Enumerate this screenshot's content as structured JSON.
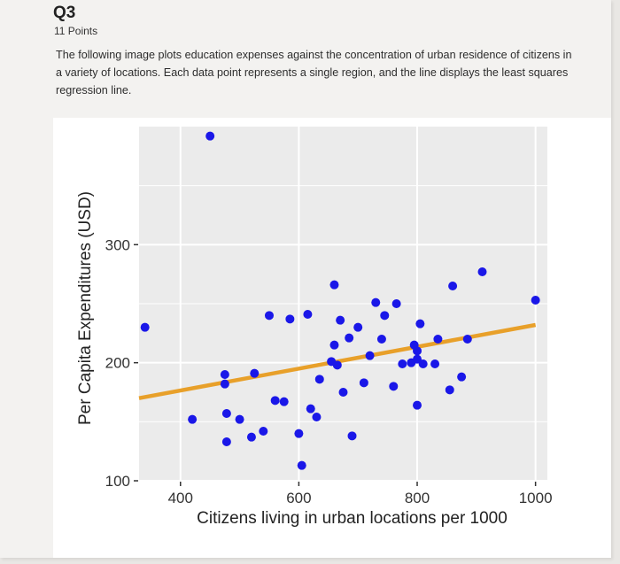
{
  "question": {
    "title": "Q3",
    "points": "11 Points",
    "description": "The following image plots education expenses against the concentration of urban residence of citizens in a variety of locations. Each data point represents a single region, and the line displays the least squares regression line."
  },
  "colors": {
    "points": "#1a17e8",
    "regression_line": "#e8a02a",
    "plot_background": "#ebebeb",
    "grid": "#ffffff"
  },
  "chart_data": {
    "type": "scatter",
    "title": "",
    "xlabel": "Citizens living in urban locations per 1000",
    "ylabel": "Per Capita Expenditures (USD)",
    "xlim": [
      330,
      1020
    ],
    "ylim": [
      100,
      400
    ],
    "x_ticks": [
      400,
      600,
      800,
      1000
    ],
    "y_ticks": [
      100,
      200,
      300
    ],
    "grid": true,
    "regression_line": {
      "x": [
        330,
        1000
      ],
      "y": [
        170,
        232
      ]
    },
    "points": [
      {
        "x": 340,
        "y": 230
      },
      {
        "x": 420,
        "y": 152
      },
      {
        "x": 450,
        "y": 392
      },
      {
        "x": 475,
        "y": 190
      },
      {
        "x": 475,
        "y": 182
      },
      {
        "x": 478,
        "y": 157
      },
      {
        "x": 478,
        "y": 133
      },
      {
        "x": 500,
        "y": 152
      },
      {
        "x": 520,
        "y": 137
      },
      {
        "x": 525,
        "y": 191
      },
      {
        "x": 540,
        "y": 142
      },
      {
        "x": 550,
        "y": 240
      },
      {
        "x": 560,
        "y": 168
      },
      {
        "x": 575,
        "y": 167
      },
      {
        "x": 585,
        "y": 237
      },
      {
        "x": 600,
        "y": 140
      },
      {
        "x": 605,
        "y": 113
      },
      {
        "x": 615,
        "y": 241
      },
      {
        "x": 620,
        "y": 161
      },
      {
        "x": 630,
        "y": 154
      },
      {
        "x": 635,
        "y": 186
      },
      {
        "x": 655,
        "y": 201
      },
      {
        "x": 660,
        "y": 266
      },
      {
        "x": 660,
        "y": 215
      },
      {
        "x": 665,
        "y": 198
      },
      {
        "x": 670,
        "y": 236
      },
      {
        "x": 675,
        "y": 175
      },
      {
        "x": 685,
        "y": 221
      },
      {
        "x": 690,
        "y": 138
      },
      {
        "x": 700,
        "y": 230
      },
      {
        "x": 710,
        "y": 183
      },
      {
        "x": 720,
        "y": 206
      },
      {
        "x": 730,
        "y": 251
      },
      {
        "x": 740,
        "y": 220
      },
      {
        "x": 745,
        "y": 240
      },
      {
        "x": 760,
        "y": 180
      },
      {
        "x": 765,
        "y": 250
      },
      {
        "x": 775,
        "y": 199
      },
      {
        "x": 790,
        "y": 200
      },
      {
        "x": 795,
        "y": 215
      },
      {
        "x": 800,
        "y": 210
      },
      {
        "x": 800,
        "y": 203
      },
      {
        "x": 800,
        "y": 164
      },
      {
        "x": 805,
        "y": 233
      },
      {
        "x": 810,
        "y": 199
      },
      {
        "x": 830,
        "y": 199
      },
      {
        "x": 835,
        "y": 220
      },
      {
        "x": 855,
        "y": 177
      },
      {
        "x": 860,
        "y": 265
      },
      {
        "x": 875,
        "y": 188
      },
      {
        "x": 885,
        "y": 220
      },
      {
        "x": 910,
        "y": 277
      },
      {
        "x": 1000,
        "y": 253
      }
    ]
  }
}
